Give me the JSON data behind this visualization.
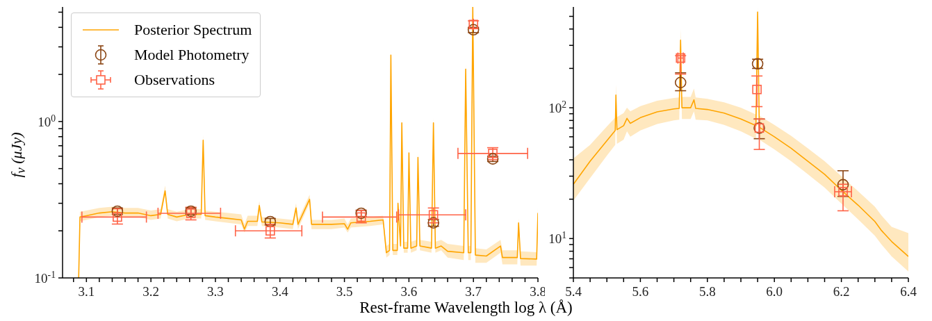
{
  "chart_data": [
    {
      "type": "line",
      "ylabel": "f$_{ν}$ (μJy)",
      "xlabel": "Rest-frame Wavelength  log λ (Å)",
      "log": "y",
      "legend": "top left",
      "xlim": [
        3.063,
        3.8
      ],
      "xticks": [
        {
          "value": 3.08,
          "label": null
        },
        3.1,
        {
          "value": 3.12,
          "label": null
        },
        {
          "value": 3.14,
          "label": null
        },
        {
          "value": 3.16,
          "label": null
        },
        {
          "value": 3.18,
          "label": null
        },
        3.2,
        {
          "value": 3.22,
          "label": null
        },
        {
          "value": 3.24,
          "label": null
        },
        {
          "value": 3.26,
          "label": null
        },
        {
          "value": 3.28,
          "label": null
        },
        3.3,
        {
          "value": 3.32,
          "label": null
        },
        {
          "value": 3.34,
          "label": null
        },
        {
          "value": 3.36,
          "label": null
        },
        {
          "value": 3.38,
          "label": null
        },
        3.4,
        {
          "value": 3.42,
          "label": null
        },
        {
          "value": 3.44,
          "label": null
        },
        {
          "value": 3.46,
          "label": null
        },
        {
          "value": 3.48,
          "label": null
        },
        3.5,
        {
          "value": 3.52,
          "label": null
        },
        {
          "value": 3.54,
          "label": null
        },
        {
          "value": 3.56,
          "label": null
        },
        {
          "value": 3.58,
          "label": null
        },
        3.6,
        {
          "value": 3.62,
          "label": null
        },
        {
          "value": 3.64,
          "label": null
        },
        {
          "value": 3.66,
          "label": null
        },
        {
          "value": 3.68,
          "label": null
        },
        3.7,
        {
          "value": 3.72,
          "label": null
        },
        {
          "value": 3.74,
          "label": null
        },
        {
          "value": 3.76,
          "label": null
        },
        {
          "value": 3.78,
          "label": null
        },
        3.8
      ],
      "ylim": [
        0.1,
        5.4
      ],
      "yticks": [
        {
          "value": 0.1,
          "label": "10$^{-1}$"
        },
        {
          "value": 0.2,
          "label": null
        },
        {
          "value": 0.3,
          "label": null
        },
        {
          "value": 0.4,
          "label": null
        },
        {
          "value": 0.5,
          "label": null
        },
        {
          "value": 0.6,
          "label": null
        },
        {
          "value": 0.7,
          "label": null
        },
        {
          "value": 0.8,
          "label": null
        },
        {
          "value": 0.9,
          "label": null
        },
        {
          "value": 1,
          "label": "10$^{0}$"
        },
        {
          "value": 2,
          "label": null
        },
        {
          "value": 3,
          "label": null
        },
        {
          "value": 4,
          "label": null
        },
        {
          "value": 5,
          "label": null
        }
      ],
      "series": [
        {
          "name": "Posterior Spectrum",
          "color": "#ffa500",
          "x": [
            3.088,
            3.09,
            3.1,
            3.12,
            3.14,
            3.16,
            3.18,
            3.2,
            3.215,
            3.222,
            3.226,
            3.24,
            3.26,
            3.278,
            3.281,
            3.284,
            3.3,
            3.32,
            3.34,
            3.345,
            3.35,
            3.365,
            3.368,
            3.372,
            3.4,
            3.42,
            3.425,
            3.428,
            3.446,
            3.449,
            3.48,
            3.5,
            3.505,
            3.51,
            3.54,
            3.56,
            3.565,
            3.57,
            3.572,
            3.575,
            3.582,
            3.583,
            3.587,
            3.589,
            3.592,
            3.598,
            3.6,
            3.603,
            3.612,
            3.614,
            3.617,
            3.635,
            3.638,
            3.641,
            3.65,
            3.66,
            3.685,
            3.688,
            3.692,
            3.696,
            3.699,
            3.703,
            3.72,
            3.742,
            3.745,
            3.768,
            3.77,
            3.773,
            3.798,
            3.8
          ],
          "values": [
            0.1,
            0.245,
            0.25,
            0.26,
            0.265,
            0.26,
            0.26,
            0.25,
            0.255,
            0.36,
            0.255,
            0.245,
            0.255,
            0.255,
            0.76,
            0.25,
            0.245,
            0.24,
            0.235,
            0.205,
            0.23,
            0.23,
            0.29,
            0.228,
            0.225,
            0.22,
            0.28,
            0.22,
            0.318,
            0.22,
            0.22,
            0.222,
            0.205,
            0.225,
            0.23,
            0.235,
            0.145,
            0.15,
            2.66,
            0.15,
            0.15,
            0.3,
            0.16,
            0.98,
            0.155,
            0.155,
            0.63,
            0.155,
            0.16,
            0.59,
            0.16,
            0.155,
            0.98,
            0.155,
            0.16,
            0.148,
            0.145,
            2.16,
            0.145,
            0.145,
            5.4,
            0.14,
            0.138,
            0.16,
            0.135,
            0.135,
            0.225,
            0.133,
            0.132,
            0.26
          ],
          "lower": [
            0.1,
            0.23,
            0.235,
            0.245,
            0.25,
            0.245,
            0.245,
            0.235,
            0.24,
            0.34,
            0.24,
            0.23,
            0.24,
            0.24,
            0.72,
            0.235,
            0.23,
            0.225,
            0.22,
            0.195,
            0.215,
            0.215,
            0.27,
            0.215,
            0.21,
            0.205,
            0.26,
            0.205,
            0.3,
            0.205,
            0.205,
            0.21,
            0.195,
            0.21,
            0.215,
            0.22,
            0.135,
            0.14,
            2.5,
            0.14,
            0.14,
            0.28,
            0.15,
            0.92,
            0.145,
            0.145,
            0.59,
            0.145,
            0.15,
            0.55,
            0.15,
            0.145,
            0.92,
            0.145,
            0.15,
            0.135,
            0.13,
            2.0,
            0.13,
            0.13,
            5.4,
            0.125,
            0.125,
            0.145,
            0.122,
            0.122,
            0.21,
            0.12,
            0.12,
            0.24
          ],
          "upper": [
            0.1,
            0.265,
            0.27,
            0.28,
            0.285,
            0.28,
            0.28,
            0.27,
            0.275,
            0.39,
            0.275,
            0.265,
            0.275,
            0.275,
            0.82,
            0.27,
            0.265,
            0.26,
            0.255,
            0.22,
            0.25,
            0.25,
            0.31,
            0.245,
            0.24,
            0.235,
            0.3,
            0.235,
            0.34,
            0.235,
            0.235,
            0.24,
            0.22,
            0.24,
            0.245,
            0.25,
            0.16,
            0.165,
            2.9,
            0.165,
            0.165,
            0.32,
            0.175,
            1.04,
            0.17,
            0.17,
            0.67,
            0.17,
            0.175,
            0.63,
            0.175,
            0.17,
            1.05,
            0.17,
            0.175,
            0.165,
            0.16,
            2.35,
            0.16,
            0.16,
            5.4,
            0.155,
            0.152,
            0.175,
            0.15,
            0.15,
            0.24,
            0.148,
            0.146,
            0.28
          ]
        },
        {
          "name": "Model Photometry",
          "type": "scatter",
          "marker": "circle",
          "color": "#8b4513",
          "x": [
            3.148,
            3.262,
            3.385,
            3.526,
            3.638,
            3.7,
            3.73
          ],
          "values": [
            0.267,
            0.267,
            0.229,
            0.259,
            0.225,
            3.86,
            0.577
          ],
          "errors": [
            [
              0.255,
              0.28
            ],
            [
              0.255,
              0.28
            ],
            [
              0.218,
              0.24
            ],
            [
              0.247,
              0.271
            ],
            [
              0.214,
              0.236
            ],
            [
              3.7,
              4.0
            ],
            [
              0.555,
              0.6
            ]
          ]
        },
        {
          "name": "Observations",
          "type": "scatter",
          "marker": "square",
          "color": "#ff6347",
          "x": [
            3.148,
            3.262,
            3.385,
            3.526,
            3.638,
            3.7,
            3.73
          ],
          "values": [
            0.245,
            0.259,
            0.2,
            0.245,
            0.253,
            4.17,
            0.625
          ],
          "errors": [
            [
              0.221,
              0.277
            ],
            [
              0.235,
              0.283
            ],
            [
              0.18,
              0.22
            ],
            [
              0.225,
              0.27
            ],
            [
              0.225,
              0.28
            ],
            [
              3.95,
              4.4
            ],
            [
              0.57,
              0.68
            ]
          ],
          "xerrors": [
            [
              3.093,
              3.193
            ],
            [
              3.211,
              3.308
            ],
            [
              3.331,
              3.434
            ],
            [
              3.466,
              3.581
            ],
            [
              3.584,
              3.688
            ],
            null,
            [
              3.676,
              3.784
            ]
          ]
        }
      ]
    },
    {
      "type": "line",
      "log": "y",
      "xlim": [
        5.4,
        6.4
      ],
      "xticks": [
        5.4,
        {
          "value": 5.45,
          "label": null
        },
        {
          "value": 5.5,
          "label": null
        },
        {
          "value": 5.55,
          "label": null
        },
        5.6,
        {
          "value": 5.65,
          "label": null
        },
        {
          "value": 5.7,
          "label": null
        },
        {
          "value": 5.75,
          "label": null
        },
        5.8,
        {
          "value": 5.85,
          "label": null
        },
        {
          "value": 5.9,
          "label": null
        },
        {
          "value": 5.95,
          "label": null
        },
        {
          "value": 6,
          "label": "6.0"
        },
        {
          "value": 6.05,
          "label": null
        },
        {
          "value": 6.1,
          "label": null
        },
        {
          "value": 6.15,
          "label": null
        },
        6.2,
        {
          "value": 6.25,
          "label": null
        },
        {
          "value": 6.3,
          "label": null
        },
        {
          "value": 6.35,
          "label": null
        },
        6.4
      ],
      "ylim": [
        5,
        590
      ],
      "yticks": [
        {
          "value": 5,
          "label": null
        },
        {
          "value": 6,
          "label": null
        },
        {
          "value": 7,
          "label": null
        },
        {
          "value": 8,
          "label": null
        },
        {
          "value": 9,
          "label": null
        },
        {
          "value": 10,
          "label": "10$^{1}$"
        },
        {
          "value": 20,
          "label": null
        },
        {
          "value": 30,
          "label": null
        },
        {
          "value": 40,
          "label": null
        },
        {
          "value": 50,
          "label": null
        },
        {
          "value": 60,
          "label": null
        },
        {
          "value": 70,
          "label": null
        },
        {
          "value": 80,
          "label": null
        },
        {
          "value": 90,
          "label": null
        },
        {
          "value": 100,
          "label": "10$^{2}$"
        },
        {
          "value": 200,
          "label": null
        },
        {
          "value": 300,
          "label": null
        },
        {
          "value": 400,
          "label": null
        },
        {
          "value": 500,
          "label": null
        }
      ],
      "series": [
        {
          "color": "#ffa500",
          "x": [
            5.4,
            5.45,
            5.5,
            5.525,
            5.527,
            5.53,
            5.55,
            5.56,
            5.57,
            5.6,
            5.65,
            5.7,
            5.716,
            5.72,
            5.724,
            5.75,
            5.76,
            5.765,
            5.8,
            5.85,
            5.9,
            5.945,
            5.95,
            5.955,
            6.0,
            6.05,
            6.1,
            6.15,
            6.2,
            6.25,
            6.3,
            6.32,
            6.35,
            6.4
          ],
          "values": [
            26,
            39,
            56,
            67,
            125,
            68,
            73,
            83,
            76,
            84,
            93,
            98,
            99,
            329,
            100,
            100,
            115,
            99,
            97,
            91,
            82,
            73,
            540,
            71,
            60,
            49,
            39,
            31,
            23.4,
            18,
            13.5,
            11.5,
            9.5,
            7.3
          ],
          "lower": [
            19.5,
            29,
            43,
            52,
            100,
            53,
            57,
            66,
            60,
            67,
            75,
            80,
            81,
            270,
            82,
            82,
            94,
            81,
            80,
            74,
            66,
            58,
            440,
            57,
            48,
            39,
            31,
            24.5,
            18.5,
            14,
            10.5,
            9,
            7.3,
            5.6
          ],
          "upper": [
            41,
            52,
            72,
            84,
            150,
            85,
            91,
            100,
            94,
            103,
            113,
            119,
            120,
            400,
            121,
            121,
            140,
            120,
            117,
            110,
            100,
            89,
            590,
            87,
            74,
            61,
            49,
            39,
            30,
            23,
            17.5,
            15,
            12.3,
            11
          ]
        },
        {
          "type": "scatter",
          "marker": "circle",
          "color": "#8b4513",
          "x": [
            5.72,
            5.95,
            5.955,
            6.205
          ],
          "values": [
            156,
            217,
            70,
            25.8
          ],
          "errors": [
            [
              135,
              185
            ],
            [
              200,
              235
            ],
            [
              58,
              82
            ],
            [
              21,
              33
            ]
          ]
        },
        {
          "type": "scatter",
          "marker": "square",
          "color": "#ff6347",
          "x": [
            5.72,
            5.948,
            5.955,
            6.205
          ],
          "values": [
            240,
            138,
            70,
            22.8
          ],
          "errors": [
            [
              181,
              250
            ],
            [
              102,
              175
            ],
            [
              48,
              82
            ],
            [
              16.3,
              26
            ]
          ],
          "xerrors": [
            [
              5.712,
              5.728
            ],
            null,
            null,
            [
              6.18,
              6.23
            ]
          ]
        }
      ]
    }
  ]
}
